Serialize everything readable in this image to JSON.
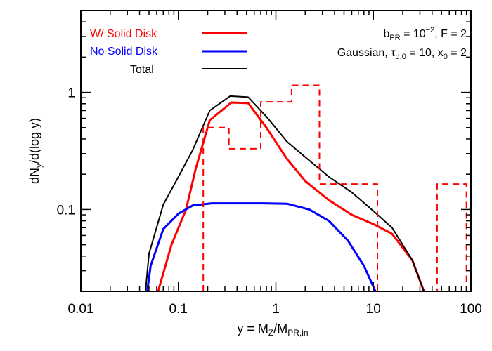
{
  "chart_data": {
    "type": "line",
    "xscale": "log",
    "yscale": "log",
    "xlim": [
      0.01,
      100
    ],
    "ylim": [
      0.02,
      5
    ],
    "x_ticks": [
      "0.01",
      "0.1",
      "1",
      "10",
      "100"
    ],
    "y_ticks": [
      "0.1",
      "1"
    ],
    "xlabel": {
      "main": "y = M",
      "sub1": "Z",
      "mid": "/M",
      "sub2": "PR,in"
    },
    "ylabel": {
      "main": "dN",
      "sub": "y",
      "rest": "/d(log  y)"
    },
    "annotations": {
      "line1": {
        "a": "b",
        "a_sub": "PR",
        "b": " = 10",
        "b_sup": "−2",
        "c": ", F = 2"
      },
      "line2": {
        "a": "Gaussian, τ",
        "a_sub": "d,0",
        "b": " = 10, x",
        "b_sub": "0",
        "c": " = 2"
      }
    },
    "series": [
      {
        "name": "W/ Solid Disk",
        "color": "#ff0000",
        "style": "solid",
        "points": [
          [
            0.062,
            0.02
          ],
          [
            0.085,
            0.05
          ],
          [
            0.12,
            0.1
          ],
          [
            0.15,
            0.22
          ],
          [
            0.21,
            0.58
          ],
          [
            0.35,
            0.82
          ],
          [
            0.52,
            0.81
          ],
          [
            0.8,
            0.5
          ],
          [
            1.3,
            0.27
          ],
          [
            2.0,
            0.175
          ],
          [
            3.5,
            0.12
          ],
          [
            6.0,
            0.09
          ],
          [
            10.0,
            0.075
          ],
          [
            15.5,
            0.062
          ],
          [
            25.0,
            0.037
          ],
          [
            33.0,
            0.02
          ]
        ]
      },
      {
        "name": "No Solid Disk",
        "color": "#0000ff",
        "style": "solid",
        "points": [
          [
            0.048,
            0.02
          ],
          [
            0.052,
            0.033
          ],
          [
            0.07,
            0.068
          ],
          [
            0.1,
            0.092
          ],
          [
            0.14,
            0.108
          ],
          [
            0.22,
            0.113
          ],
          [
            0.4,
            0.113
          ],
          [
            0.75,
            0.113
          ],
          [
            1.3,
            0.112
          ],
          [
            2.2,
            0.1
          ],
          [
            3.5,
            0.08
          ],
          [
            5.5,
            0.054
          ],
          [
            8.0,
            0.033
          ],
          [
            10.5,
            0.02
          ]
        ]
      },
      {
        "name": "Total",
        "color": "#000000",
        "style": "solid",
        "points": [
          [
            0.046,
            0.02
          ],
          [
            0.05,
            0.042
          ],
          [
            0.07,
            0.11
          ],
          [
            0.1,
            0.19
          ],
          [
            0.14,
            0.32
          ],
          [
            0.21,
            0.7
          ],
          [
            0.34,
            0.93
          ],
          [
            0.52,
            0.91
          ],
          [
            0.8,
            0.62
          ],
          [
            1.3,
            0.38
          ],
          [
            2.0,
            0.28
          ],
          [
            3.5,
            0.19
          ],
          [
            6.0,
            0.14
          ],
          [
            10.0,
            0.097
          ],
          [
            15.5,
            0.07
          ],
          [
            25.0,
            0.037
          ],
          [
            33.0,
            0.02
          ]
        ]
      },
      {
        "name": "",
        "color": "#ff0000",
        "style": "dashed",
        "points": [
          [
            0.18,
            0.02
          ],
          [
            0.18,
            0.5
          ],
          [
            0.33,
            0.5
          ],
          [
            0.33,
            0.33
          ],
          [
            0.7,
            0.33
          ],
          [
            0.7,
            0.83
          ],
          [
            1.45,
            0.83
          ],
          [
            1.45,
            1.15
          ],
          [
            2.8,
            1.15
          ],
          [
            2.8,
            0.165
          ],
          [
            11.0,
            0.165
          ],
          [
            11.0,
            0.02
          ],
          [
            45.0,
            0.02
          ],
          [
            45.0,
            0.165
          ],
          [
            90.0,
            0.165
          ],
          [
            90.0,
            0.02
          ]
        ]
      }
    ]
  }
}
